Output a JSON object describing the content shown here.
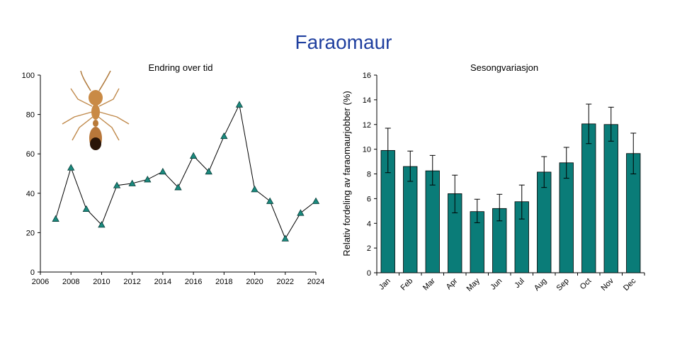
{
  "page": {
    "title": "Faraomaur"
  },
  "icons": {
    "ant": "ant-icon"
  },
  "chart_data": [
    {
      "type": "line",
      "title": "Endring over tid",
      "xlabel": "",
      "ylabel": "",
      "xlim": [
        2006,
        2024
      ],
      "ylim": [
        0,
        100
      ],
      "xticks": [
        2006,
        2008,
        2010,
        2012,
        2014,
        2016,
        2018,
        2020,
        2022,
        2024
      ],
      "yticks": [
        0,
        20,
        40,
        60,
        80,
        100
      ],
      "grid": false,
      "marker": "triangle",
      "marker_color": "#1a8a7e",
      "x": [
        2007,
        2008,
        2009,
        2010,
        2011,
        2012,
        2013,
        2014,
        2015,
        2016,
        2017,
        2018,
        2019,
        2020,
        2021,
        2022,
        2023,
        2024
      ],
      "y": [
        27,
        53,
        32,
        24,
        44,
        45,
        47,
        51,
        43,
        59,
        51,
        69,
        85,
        42,
        36,
        17,
        30,
        36
      ]
    },
    {
      "type": "bar",
      "title": "Sesongvariasjon",
      "xlabel": "",
      "ylabel": "Relativ fordeling av faraomaurjobber (%)",
      "ylim": [
        0,
        16
      ],
      "yticks": [
        0,
        2,
        4,
        6,
        8,
        10,
        12,
        14,
        16
      ],
      "grid": false,
      "bar_color": "#0a7c78",
      "categories": [
        "Jan",
        "Feb",
        "Mar",
        "Apr",
        "May",
        "Jun",
        "Jul",
        "Aug",
        "Sep",
        "Oct",
        "Nov",
        "Dec"
      ],
      "values": [
        9.9,
        8.6,
        8.25,
        6.4,
        4.95,
        5.2,
        5.75,
        8.15,
        8.9,
        12.05,
        12.0,
        9.65
      ],
      "error_upper": [
        11.7,
        9.85,
        9.5,
        7.9,
        5.95,
        6.35,
        7.1,
        9.4,
        10.15,
        13.65,
        13.4,
        11.3
      ],
      "error_lower": [
        8.1,
        7.4,
        7.1,
        4.85,
        4.05,
        4.2,
        4.35,
        6.9,
        7.65,
        10.45,
        10.65,
        8.0
      ]
    }
  ]
}
